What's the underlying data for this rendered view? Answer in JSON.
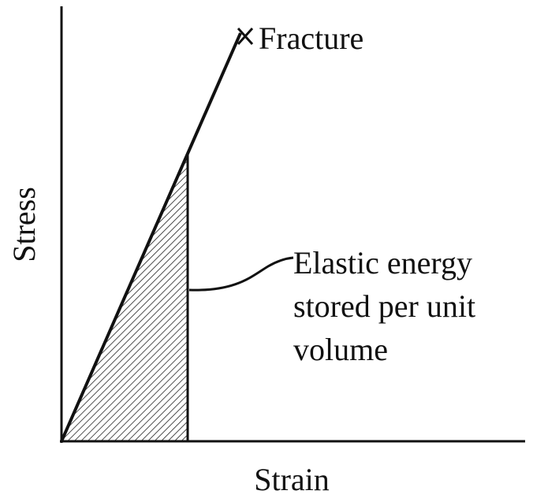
{
  "axes": {
    "x_label": "Strain",
    "y_label": "Stress"
  },
  "annotations": {
    "fracture": "Fracture",
    "elastic_energy": [
      "Elastic energy",
      "stored per unit",
      "volume"
    ]
  }
}
